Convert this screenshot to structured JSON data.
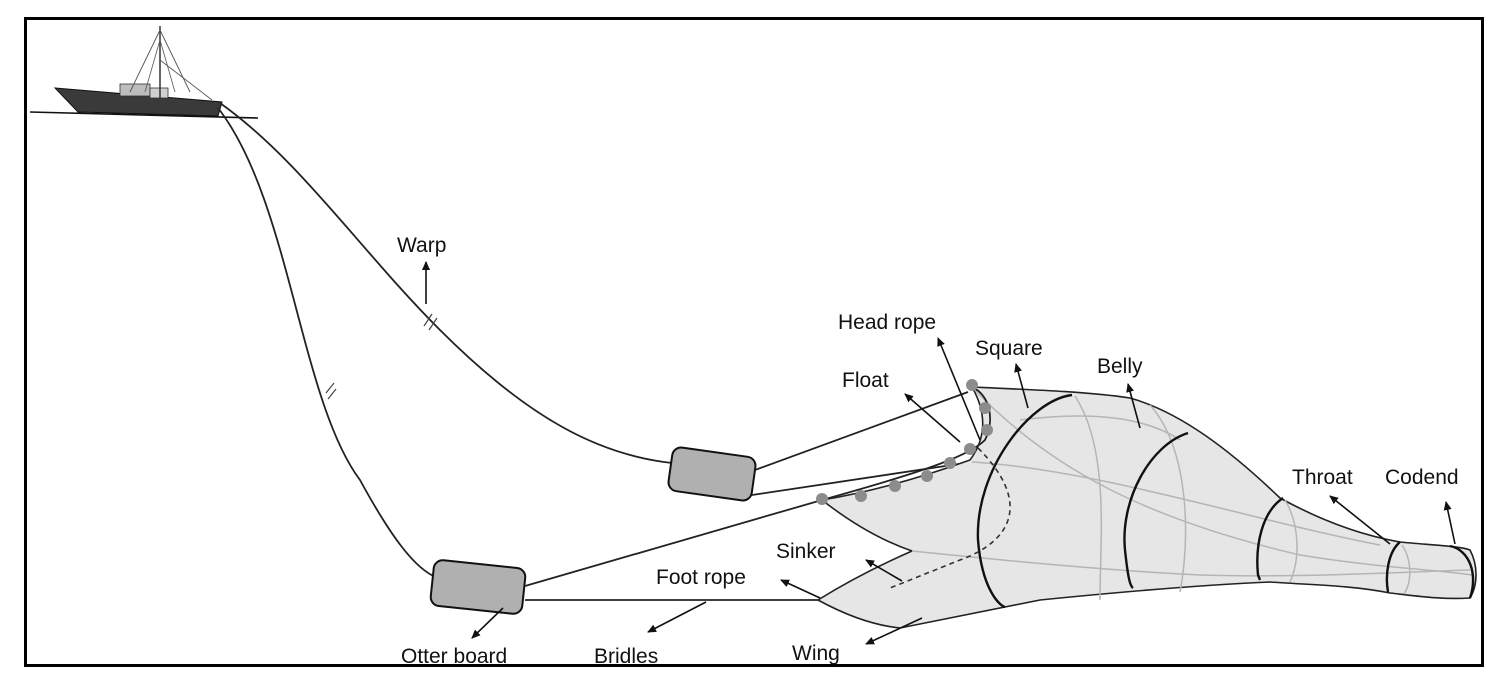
{
  "labels": {
    "warp": "Warp",
    "head_rope": "Head rope",
    "square": "Square",
    "belly": "Belly",
    "float": "Float",
    "throat": "Throat",
    "codend": "Codend",
    "sinker": "Sinker",
    "foot_rope": "Foot rope",
    "otter_board": "Otter board",
    "bridles": "Bridles",
    "wing": "Wing"
  },
  "colors": {
    "line": "#222222",
    "net_fill": "#e6e6e6",
    "otter_board": "#b0b0b0",
    "float": "#8c8c8c",
    "net_mesh": "#b5b5b5"
  }
}
